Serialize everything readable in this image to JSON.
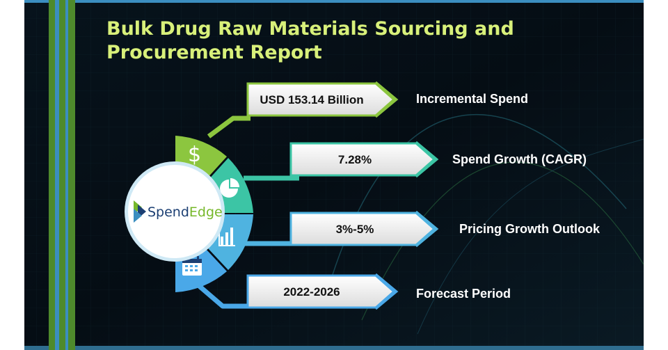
{
  "title": {
    "line1": "Bulk Drug Raw Materials Sourcing and",
    "line2": "Procurement Report"
  },
  "logo": {
    "part1": "Spend",
    "part2": "Edge"
  },
  "metrics": [
    {
      "value": "USD 153.14 Billion",
      "label": "Incremental Spend",
      "icon": "dollar-icon",
      "color": "#8cc63f"
    },
    {
      "value": "7.28%",
      "label": "Spend Growth (CAGR)",
      "icon": "pie-chart-icon",
      "color": "#3cc5a5"
    },
    {
      "value": "3%-5%",
      "label": "Pricing Growth Outlook",
      "icon": "bar-chart-icon",
      "color": "#4fb3e0"
    },
    {
      "value": "2022-2026",
      "label": "Forecast Period",
      "icon": "calendar-icon",
      "color": "#4aa8e8"
    }
  ],
  "colors": {
    "background": "#050d14",
    "stripe_green": "#4e8a2c",
    "stripe_blue": "#3b8ec0",
    "title": "#d8f07a",
    "logo_green": "#76b82a",
    "logo_navy": "#1c3f73"
  }
}
